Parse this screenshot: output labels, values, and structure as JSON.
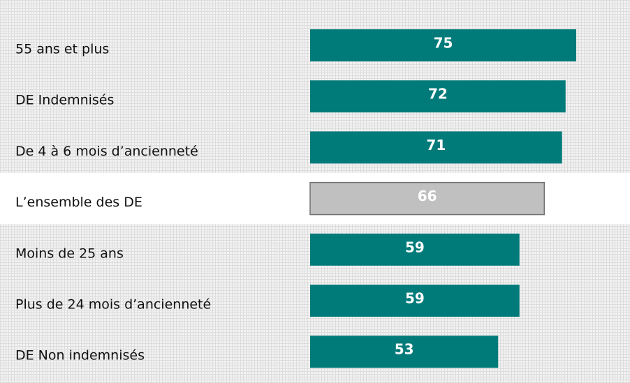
{
  "chart_data": {
    "type": "bar",
    "orientation": "horizontal",
    "categories": [
      "55 ans et plus",
      "DE Indemnisés",
      "De 4 à 6 mois d’ancienneté",
      "L’ensemble des DE",
      "Moins de 25 ans",
      "Plus de 24 mois d’ancienneté",
      "DE Non indemnisés"
    ],
    "values": [
      75,
      72,
      71,
      66,
      59,
      59,
      53
    ],
    "colors": [
      "#007b7a",
      "#007b7a",
      "#007b7a",
      "#c0c0c0",
      "#007b7a",
      "#007b7a",
      "#007b7a"
    ]
  }
}
